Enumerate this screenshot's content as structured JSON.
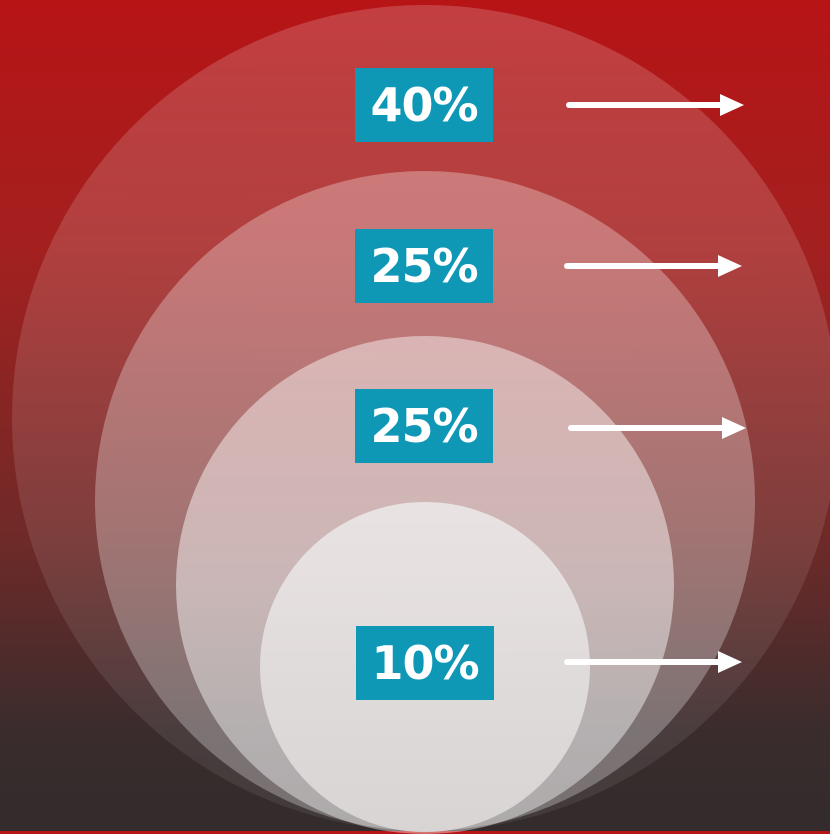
{
  "levels": [
    {
      "label": "40%",
      "value": 40
    },
    {
      "label": "25%",
      "value": 25
    },
    {
      "label": "25%",
      "value": 25
    },
    {
      "label": "10%",
      "value": 10
    }
  ],
  "colors": {
    "badge": "#0f97b6",
    "badge_text": "#ffffff",
    "arrow": "#ffffff",
    "background_top": "#b71416",
    "background_bottom": "#332b2c"
  },
  "icons": {
    "arrow": "arrow-right-icon"
  }
}
